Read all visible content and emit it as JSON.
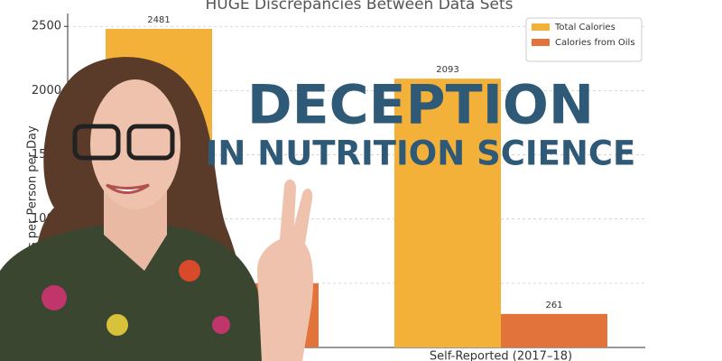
{
  "chart_data": {
    "type": "bar",
    "title": "HUGE Discrepancies Between Data Sets",
    "y_label": "Calories per Person per Day",
    "categories": [
      null,
      "Self-Reported (2017–18)"
    ],
    "series": [
      {
        "name": "Total Calories",
        "color": "#f3b13a",
        "values": [
          2481,
          2093
        ]
      },
      {
        "name": "Calories from Oils",
        "color": "#e2733a",
        "values": [
          500,
          261
        ]
      }
    ],
    "ylim": [
      0,
      2600
    ],
    "yticks": [
      0,
      500,
      1000,
      1500,
      2000,
      2500
    ],
    "grid": true,
    "legend": "upper right"
  },
  "overlay": {
    "headline": "DECEPTION",
    "subheadline": "IN NUTRITION SCIENCE"
  }
}
